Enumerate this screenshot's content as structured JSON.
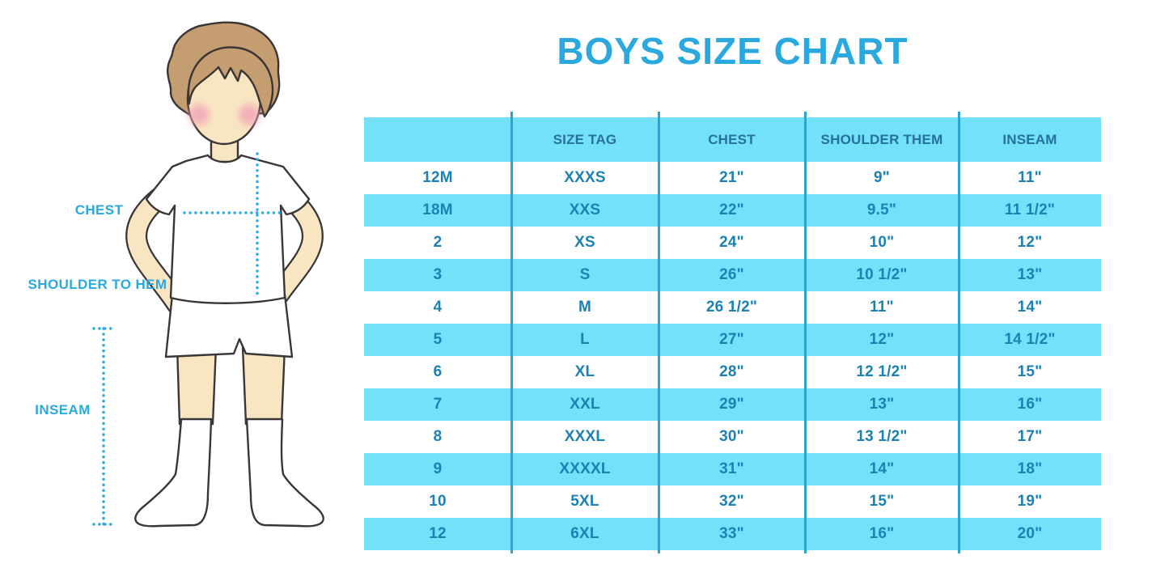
{
  "title_note": "boys apparel size chart infographic",
  "colors": {
    "accent": "#29A9E0",
    "row_cyan": "#73E1FA",
    "divider": "#2BA4CF",
    "cell_text": "#1C81B3",
    "header_text": "#26719B",
    "outline": "#3A3536",
    "skin": "#F8E6C3",
    "hair": "#C49E71",
    "blush": "#F2A3B6"
  },
  "figure": {
    "labels": {
      "chest": "CHEST",
      "shoulder_to_hem": "SHOULDER TO HEM",
      "inseam": "INSEAM"
    }
  },
  "chart_data": {
    "type": "table",
    "title": "BOYS SIZE CHART",
    "columns": [
      "",
      "SIZE TAG",
      "CHEST",
      "SHOULDER THEM",
      "INSEAM"
    ],
    "rows": [
      [
        "12M",
        "XXXS",
        "21\"",
        "9\"",
        "11\""
      ],
      [
        "18M",
        "XXS",
        "22\"",
        "9.5\"",
        "11 1/2\""
      ],
      [
        "2",
        "XS",
        "24\"",
        "10\"",
        "12\""
      ],
      [
        "3",
        "S",
        "26\"",
        "10 1/2\"",
        "13\""
      ],
      [
        "4",
        "M",
        "26 1/2\"",
        "11\"",
        "14\""
      ],
      [
        "5",
        "L",
        "27\"",
        "12\"",
        "14 1/2\""
      ],
      [
        "6",
        "XL",
        "28\"",
        "12 1/2\"",
        "15\""
      ],
      [
        "7",
        "XXL",
        "29\"",
        "13\"",
        "16\""
      ],
      [
        "8",
        "XXXL",
        "30\"",
        "13 1/2\"",
        "17\""
      ],
      [
        "9",
        "XXXXL",
        "31\"",
        "14\"",
        "18\""
      ],
      [
        "10",
        "5XL",
        "32\"",
        "15\"",
        "19\""
      ],
      [
        "12",
        "6XL",
        "33\"",
        "16\"",
        "20\""
      ]
    ],
    "layout": {
      "alternating_row_shading": true,
      "first_shaded": "header",
      "grid": "vertical-dividers-only"
    }
  }
}
